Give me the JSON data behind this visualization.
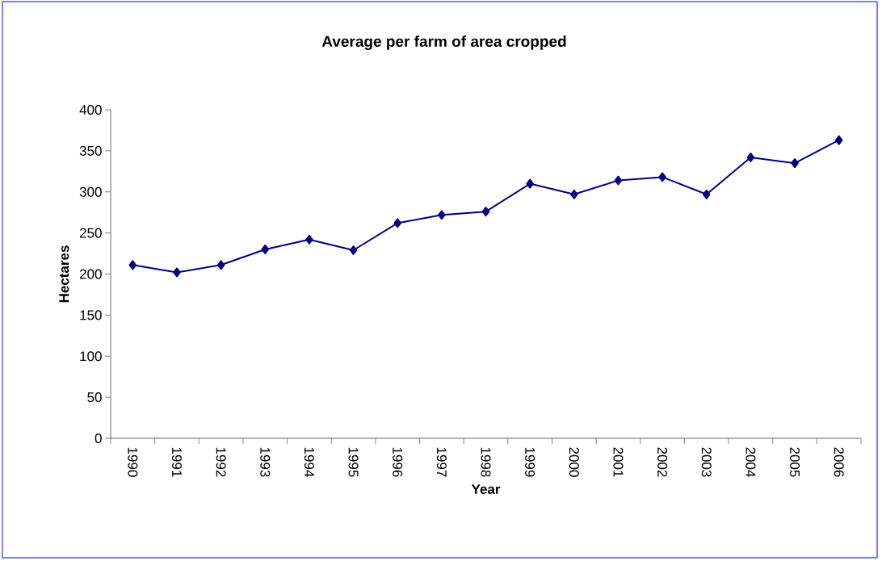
{
  "chart_data": {
    "type": "line",
    "title": "Average per farm of area cropped",
    "xlabel": "Year",
    "ylabel": "Hectares",
    "categories": [
      "1990",
      "1991",
      "1992",
      "1993",
      "1994",
      "1995",
      "1996",
      "1997",
      "1998",
      "1999",
      "2000",
      "2001",
      "2002",
      "2003",
      "2004",
      "2005",
      "2006"
    ],
    "series": [
      {
        "color": "#000080",
        "values": [
          211,
          202,
          211,
          230,
          242,
          229,
          262,
          272,
          276,
          310,
          297,
          314,
          318,
          297,
          342,
          335,
          363
        ]
      }
    ],
    "ylim": [
      0,
      400
    ],
    "yticks": [
      0,
      50,
      100,
      150,
      200,
      250,
      300,
      350,
      400
    ],
    "marker": "diamond",
    "line_style": "solid",
    "grid": false
  }
}
